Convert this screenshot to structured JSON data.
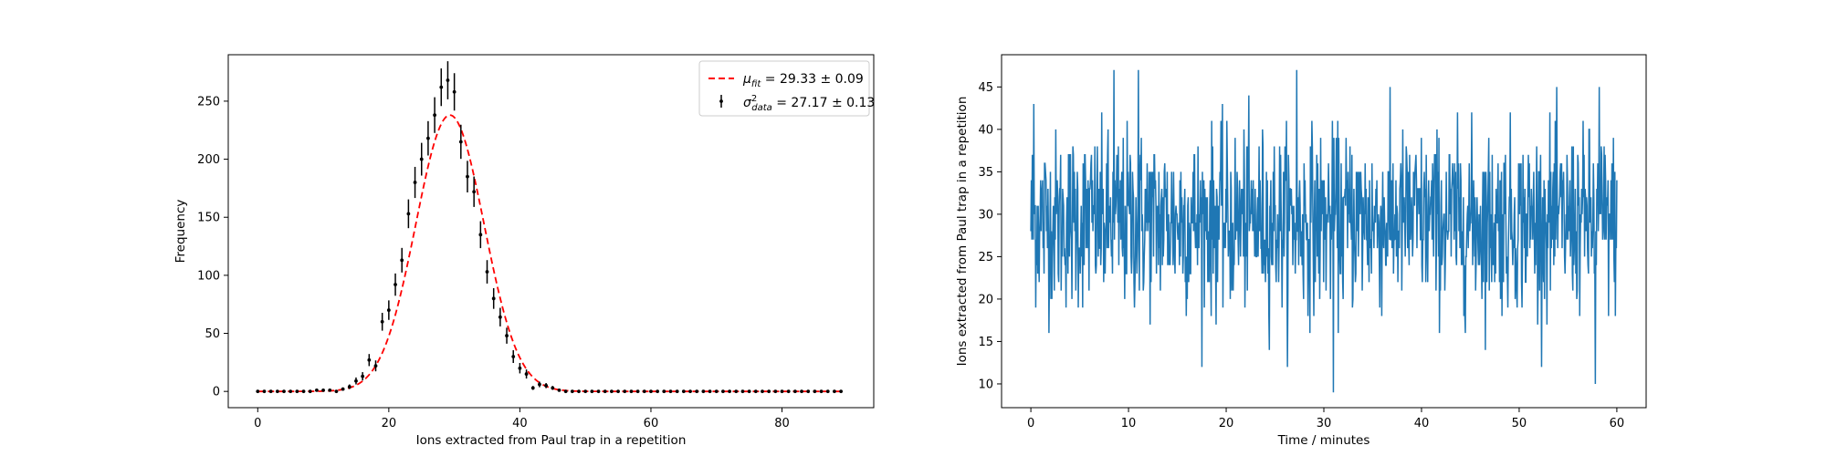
{
  "colors": {
    "errorbar_data": "#000000",
    "fit_line": "#ff0000",
    "timeseries": "#1f77b4",
    "axes": "#000000"
  },
  "chart_data": [
    {
      "type": "scatter",
      "xlabel": "Ions extracted from Paul trap in a repetition",
      "ylabel": "Frequency",
      "xlim": [
        -4.5,
        94
      ],
      "ylim": [
        -14,
        290
      ],
      "xticks": [
        0,
        20,
        40,
        60,
        80
      ],
      "yticks": [
        0,
        50,
        100,
        150,
        200,
        250
      ],
      "grid": false,
      "legend_position": "top-right",
      "legend": [
        {
          "series": "fit",
          "text_main": "μ",
          "text_sub": "fit",
          "text_rest": " = 29.33 ± 0.09"
        },
        {
          "series": "data",
          "text_main": "σ",
          "text_sup": "2",
          "text_sub": "data",
          "text_rest": " = 27.17 ± 0.13"
        }
      ],
      "series": [
        {
          "id": "data",
          "kind": "errorbar",
          "x": [
            0,
            1,
            2,
            3,
            4,
            5,
            6,
            7,
            8,
            9,
            10,
            11,
            12,
            13,
            14,
            15,
            16,
            17,
            18,
            19,
            20,
            21,
            22,
            23,
            24,
            25,
            26,
            27,
            28,
            29,
            30,
            31,
            32,
            33,
            34,
            35,
            36,
            37,
            38,
            39,
            40,
            41,
            42,
            43,
            44,
            45,
            46,
            47,
            48,
            49,
            50,
            51,
            52,
            53,
            54,
            55,
            56,
            57,
            58,
            59,
            60,
            61,
            62,
            63,
            64,
            65,
            66,
            67,
            68,
            69,
            70,
            71,
            72,
            73,
            74,
            75,
            76,
            77,
            78,
            79,
            80,
            81,
            82,
            83,
            84,
            85,
            86,
            87,
            88,
            89
          ],
          "y": [
            0,
            0,
            0,
            0,
            0,
            0,
            0,
            0,
            0,
            1,
            1,
            1,
            0,
            2,
            4,
            9,
            13,
            27,
            22,
            60,
            70,
            92,
            113,
            153,
            180,
            200,
            218,
            238,
            262,
            268,
            258,
            215,
            185,
            172,
            135,
            103,
            80,
            64,
            48,
            30,
            20,
            15,
            3,
            6,
            5,
            3,
            1,
            0,
            0,
            0,
            0,
            0,
            0,
            0,
            0,
            0,
            0,
            0,
            0,
            0,
            0,
            0,
            0,
            0,
            0,
            0,
            0,
            0,
            0,
            0,
            0,
            0,
            0,
            0,
            0,
            0,
            0,
            0,
            0,
            0,
            0,
            0,
            0,
            0,
            0,
            0,
            0,
            0,
            0,
            0
          ],
          "yerr": [
            0,
            0,
            0,
            0,
            0,
            0,
            0,
            0,
            0,
            1,
            1,
            1,
            0,
            1.4,
            2,
            3,
            3.6,
            5.2,
            4.7,
            7.7,
            8.4,
            9.6,
            10.6,
            12.4,
            13.4,
            14.1,
            14.8,
            15.4,
            16.2,
            16.4,
            16.1,
            14.7,
            13.6,
            13.1,
            11.6,
            10.1,
            8.9,
            8,
            6.9,
            5.5,
            4.5,
            3.9,
            1.7,
            2.4,
            2.2,
            1.7,
            1,
            0,
            0,
            0,
            0,
            0,
            0,
            0,
            0,
            0,
            0,
            0,
            0,
            0,
            0,
            0,
            0,
            0,
            0,
            0,
            0,
            0,
            0,
            0,
            0,
            0,
            0,
            0,
            0,
            0,
            0,
            0,
            0,
            0,
            0,
            0,
            0,
            0,
            0,
            0,
            0,
            0,
            0,
            0
          ]
        },
        {
          "id": "fit",
          "kind": "gaussian-line",
          "mu": 29.33,
          "sigma": 5.2,
          "amplitude": 238,
          "x_range": [
            0,
            89
          ]
        }
      ]
    },
    {
      "type": "line",
      "xlabel": "Time / minutes",
      "ylabel": "Ions extracted from Paul trap in a repetition",
      "xlim": [
        -3,
        63
      ],
      "ylim": [
        7.2,
        48.8
      ],
      "xticks": [
        0,
        10,
        20,
        30,
        40,
        50,
        60
      ],
      "yticks": [
        10,
        15,
        20,
        25,
        30,
        35,
        40,
        45
      ],
      "grid": false,
      "series": [
        {
          "id": "ions-vs-time",
          "x_range": [
            0,
            60
          ],
          "n_points": 1200,
          "mean": 29.3,
          "std": 5.2,
          "min": 9,
          "max": 47,
          "notable_points": [
            {
              "x": 0.3,
              "y": 43
            },
            {
              "x": 8.5,
              "y": 47
            },
            {
              "x": 11.0,
              "y": 47
            },
            {
              "x": 27.2,
              "y": 47
            },
            {
              "x": 31.0,
              "y": 9
            },
            {
              "x": 57.8,
              "y": 10
            },
            {
              "x": 58.2,
              "y": 45
            }
          ]
        }
      ]
    }
  ]
}
